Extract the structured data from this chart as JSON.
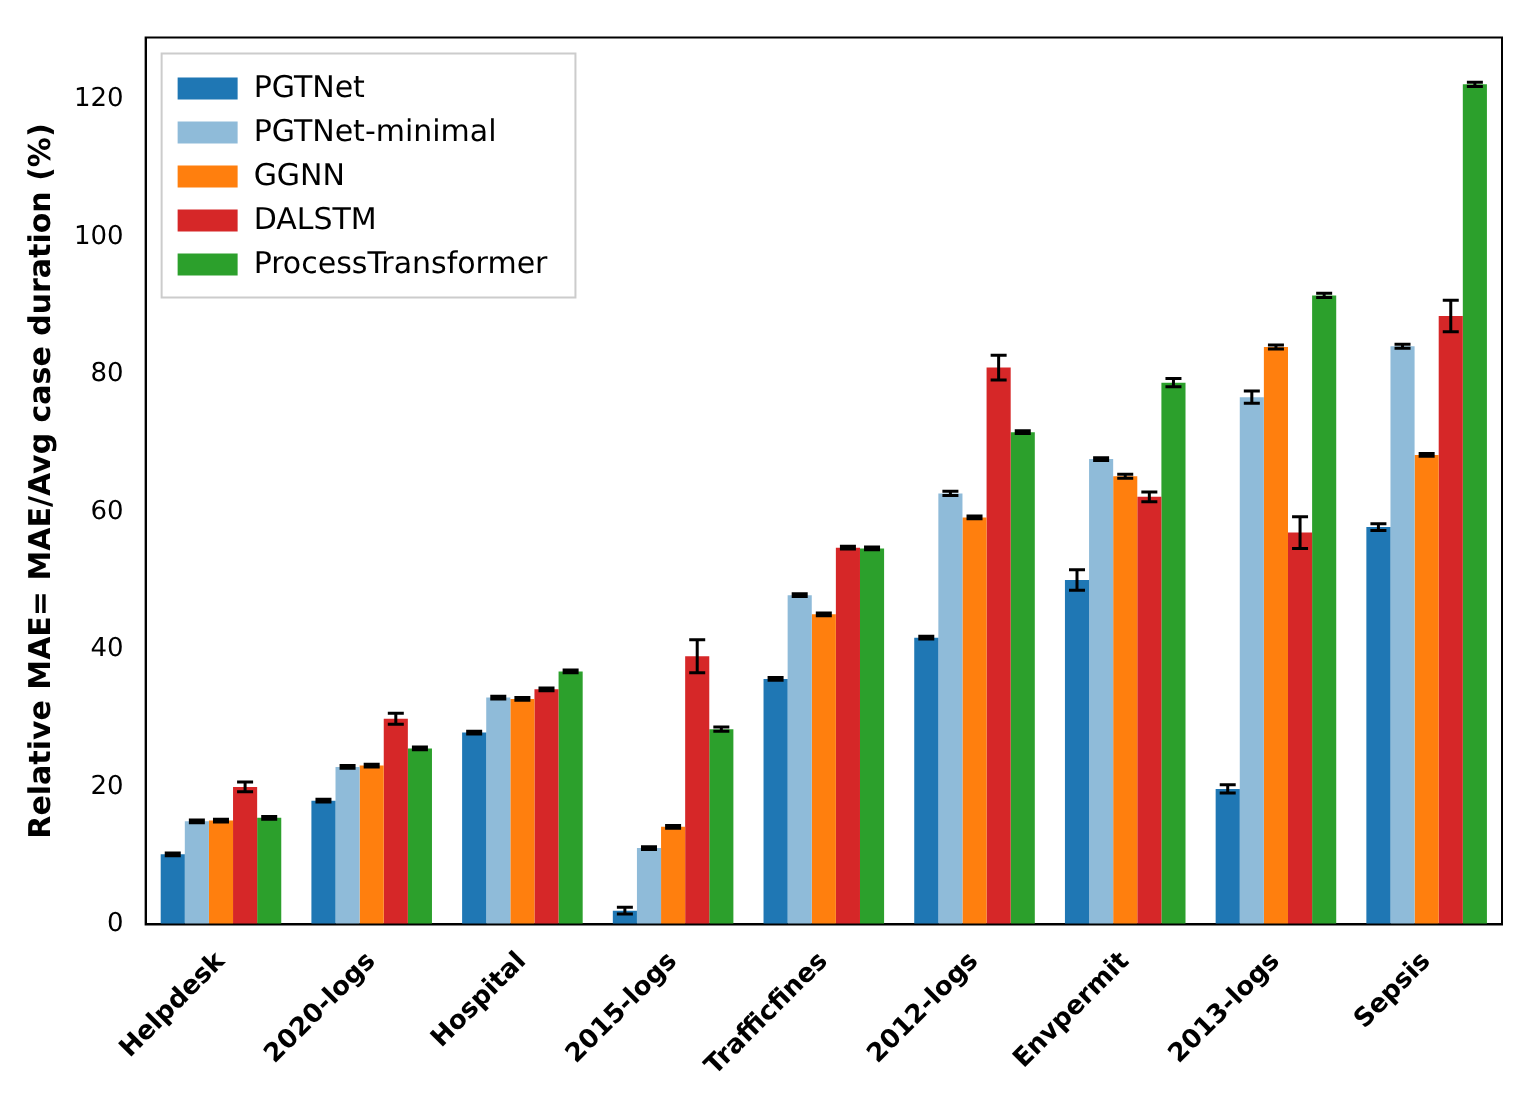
{
  "chart_data": {
    "type": "bar",
    "ylabel": "Relative MAE= MAE/Avg case duration (%)",
    "categories": [
      "Helpdesk",
      "2020-logs",
      "Hospital",
      "2015-logs",
      "Trafficfines",
      "2012-logs",
      "Envpermit",
      "2013-logs",
      "Sepsis"
    ],
    "series": [
      {
        "name": "PGTNet",
        "color": "#1f77b4",
        "values": [
          10.2,
          18,
          27.9,
          2,
          35.7,
          41.7,
          50.1,
          19.7,
          57.8
        ],
        "errors": [
          0.2,
          0.2,
          0.2,
          0.5,
          0.2,
          0.2,
          1.5,
          0.6,
          0.5
        ]
      },
      {
        "name": "PGTNet-minimal",
        "color": "#8fbbd9",
        "values": [
          15,
          22.9,
          33,
          11.1,
          47.9,
          62.7,
          67.7,
          76.7,
          84.1
        ],
        "errors": [
          0.2,
          0.2,
          0.2,
          0.2,
          0.2,
          0.3,
          0.2,
          0.9,
          0.3
        ]
      },
      {
        "name": "GGNN",
        "color": "#ff7f0e",
        "values": [
          15.1,
          23.1,
          32.8,
          14.2,
          45.1,
          59.2,
          65.2,
          84,
          68.3
        ],
        "errors": [
          0.2,
          0.2,
          0.2,
          0.2,
          0.2,
          0.2,
          0.3,
          0.3,
          0.2
        ]
      },
      {
        "name": "DALSTM",
        "color": "#d62728",
        "values": [
          20,
          29.9,
          34.2,
          39,
          54.8,
          81,
          62.2,
          57,
          88.5
        ],
        "errors": [
          0.7,
          0.8,
          0.2,
          2.4,
          0.2,
          1.8,
          0.7,
          2.3,
          2.3
        ]
      },
      {
        "name": "ProcessTransformer",
        "color": "#2ca02c",
        "values": [
          15.5,
          25.6,
          36.8,
          28.4,
          54.7,
          71.6,
          78.8,
          91.5,
          122.2
        ],
        "errors": [
          0.2,
          0.2,
          0.2,
          0.3,
          0.2,
          0.2,
          0.6,
          0.3,
          0.3
        ]
      }
    ],
    "ylim": [
      0,
      129
    ],
    "yticks": [
      0,
      20,
      40,
      60,
      80,
      100,
      120
    ],
    "grid": false,
    "legend": "top left"
  }
}
